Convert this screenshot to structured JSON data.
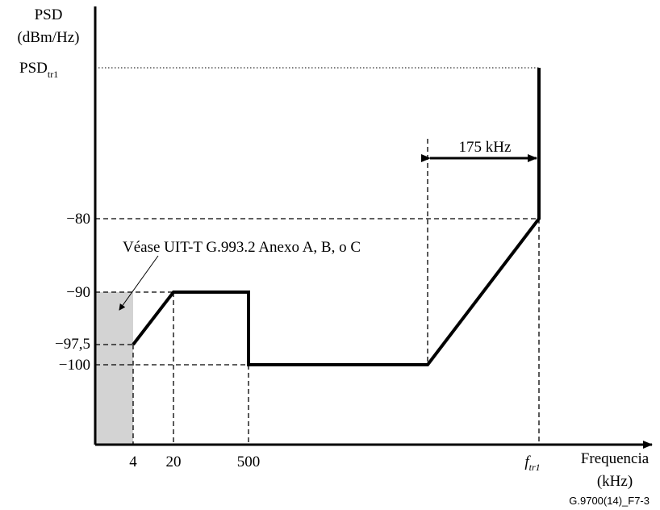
{
  "y_axis": {
    "title_line1": "PSD",
    "title_line2": "(dBm/Hz)",
    "tick_psd_main": "PSD",
    "tick_psd_sub": "tr1",
    "tick_80": "−80",
    "tick_90": "−90",
    "tick_975": "−97,5",
    "tick_100": "−100"
  },
  "x_axis": {
    "tick_4": "4",
    "tick_20": "20",
    "tick_500": "500",
    "tick_f_main": "f",
    "tick_f_sub": "tr1",
    "title_line1": "Frequencia",
    "title_line2": "(kHz)"
  },
  "annotations": {
    "reference_note": "Véase UIT-T G.993.2 Anexo A, B, o C",
    "width_label": "175 kHz"
  },
  "figure_id": "G.9700(14)_F7-3"
}
